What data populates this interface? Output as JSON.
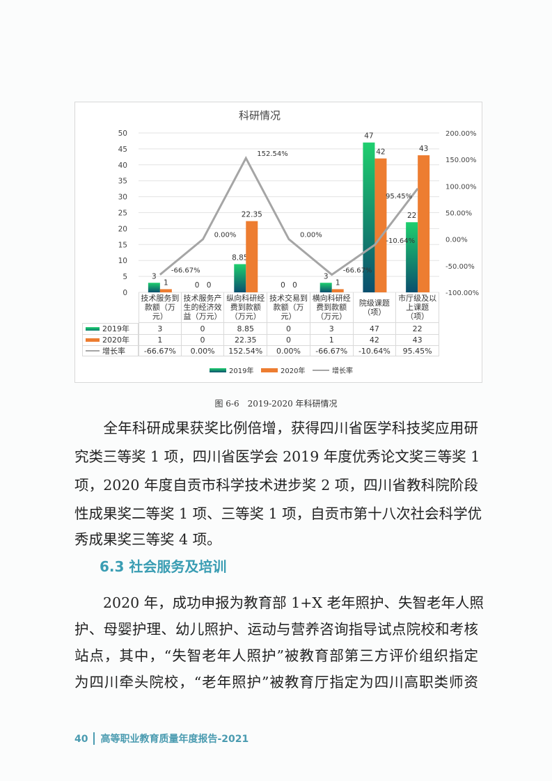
{
  "chart_data": {
    "type": "bar+line",
    "title": "科研情况",
    "categories": [
      "技术服务到款额（万元）",
      "技术服务产生的经济效益（万元）",
      "纵向科研经费到款额（万元）",
      "技术交易到款额（万元）",
      "横向科研经费到款额（万元）",
      "院级课题（项）",
      "市厅级及以上课题（项）"
    ],
    "series": [
      {
        "name": "2019年",
        "type": "bar",
        "axis": "left",
        "color": "#1fc46e",
        "values": [
          3,
          0,
          8.85,
          0,
          3,
          47,
          22
        ],
        "labels": [
          "3",
          "0",
          "8.85",
          "0",
          "3",
          "47",
          "22"
        ]
      },
      {
        "name": "2020年",
        "type": "bar",
        "axis": "left",
        "color": "#ed7d31",
        "values": [
          1,
          0,
          22.35,
          0,
          1,
          42,
          43
        ],
        "labels": [
          "1",
          "0",
          "22.35",
          "0",
          "1",
          "42",
          "43"
        ]
      },
      {
        "name": "增长率",
        "type": "line",
        "axis": "right",
        "color": "#a5a5a5",
        "values": [
          -66.67,
          0,
          152.54,
          0,
          -66.67,
          -10.64,
          95.45
        ],
        "labels": [
          "-66.67%",
          "0.00%",
          "152.54%",
          "0.00%",
          "-66.67%",
          "-10.64%",
          "95.45%"
        ]
      }
    ],
    "left_axis": {
      "range": [
        0,
        50
      ],
      "ticks": [
        "0",
        "5",
        "10",
        "15",
        "20",
        "25",
        "30",
        "35",
        "40",
        "45",
        "50"
      ]
    },
    "right_axis": {
      "range": [
        -100,
        200
      ],
      "ticks": [
        "-100.00%",
        "-50.00%",
        "0.00%",
        "50.00%",
        "100.00%",
        "150.00%",
        "200.00%"
      ]
    },
    "grid": true,
    "legend": "bottom",
    "data_table": true
  },
  "caption": "图 6-6　2019-2020 年科研情况",
  "paragraph1": [
    "　　全年科研成果获奖比例倍增，获得四川省医学科技奖应用研",
    "究类三等奖 1 项，四川省医学会 2019 年度优秀论文奖三等奖 1",
    "项，2020 年度自贡市科学技术进步奖 2 项，四川省教科院阶段",
    "性成果奖二等奖 1 项、三等奖 1 项，自贡市第十八次社会科学优",
    "秀成果奖三等奖 4 项。"
  ],
  "heading": "6.3 社会服务及培训",
  "paragraph2": [
    "　　2020 年，成功申报为教育部 1+X 老年照护、失智老年人照",
    "护、母婴护理、幼儿照护、运动与营养咨询指导试点院校和考核",
    "站点，其中，“失智老年人照护”被教育部第三方评价组织指定",
    "为四川牵头院校，“老年照护”被教育厅指定为四川高职类师资"
  ],
  "footer": {
    "page_number": "40",
    "title": "高等职业教育质量年度报告-2021"
  }
}
